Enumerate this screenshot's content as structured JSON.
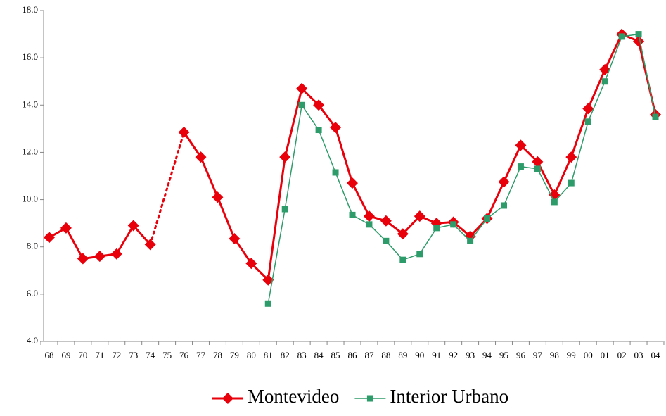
{
  "chart_data": {
    "type": "line",
    "categories": [
      "68",
      "69",
      "70",
      "71",
      "72",
      "73",
      "74",
      "75",
      "76",
      "77",
      "78",
      "79",
      "80",
      "81",
      "82",
      "83",
      "84",
      "85",
      "86",
      "87",
      "88",
      "89",
      "90",
      "91",
      "92",
      "93",
      "94",
      "95",
      "96",
      "97",
      "98",
      "99",
      "00",
      "01",
      "02",
      "03",
      "04"
    ],
    "series": [
      {
        "name": "Montevideo",
        "color": "#e8000b",
        "marker": "diamond",
        "values": [
          8.4,
          8.8,
          7.5,
          7.6,
          7.7,
          8.9,
          8.1,
          null,
          12.85,
          11.8,
          10.1,
          8.35,
          7.3,
          6.6,
          11.8,
          14.7,
          14.0,
          13.05,
          10.7,
          9.3,
          9.1,
          8.55,
          9.3,
          9.0,
          9.05,
          8.45,
          9.2,
          10.75,
          12.3,
          11.6,
          10.2,
          11.8,
          13.85,
          15.5,
          17.0,
          16.7,
          13.6
        ]
      },
      {
        "name": "Interior Urbano",
        "color": "#2e9c6a",
        "marker": "square",
        "values": [
          null,
          null,
          null,
          null,
          null,
          null,
          null,
          null,
          null,
          null,
          null,
          null,
          null,
          5.6,
          9.6,
          14.0,
          12.95,
          11.15,
          9.35,
          8.95,
          8.25,
          7.45,
          7.7,
          8.8,
          8.95,
          8.25,
          9.2,
          9.75,
          11.4,
          11.3,
          9.9,
          10.7,
          13.3,
          15.0,
          16.9,
          17.0,
          13.5
        ]
      }
    ],
    "gap_style": "dotted",
    "ylim": [
      4,
      18
    ],
    "yticks": [
      {
        "value": 4,
        "label": "4.0"
      },
      {
        "value": 6,
        "label": "6.0"
      },
      {
        "value": 8,
        "label": "8.0"
      },
      {
        "value": 10,
        "label": "10.0"
      },
      {
        "value": 12,
        "label": "12.0"
      },
      {
        "value": 14,
        "label": "14.0"
      },
      {
        "value": 16,
        "label": "16.0"
      },
      {
        "value": 18,
        "label": "18.0"
      }
    ],
    "grid": false,
    "legend": "bottom"
  }
}
